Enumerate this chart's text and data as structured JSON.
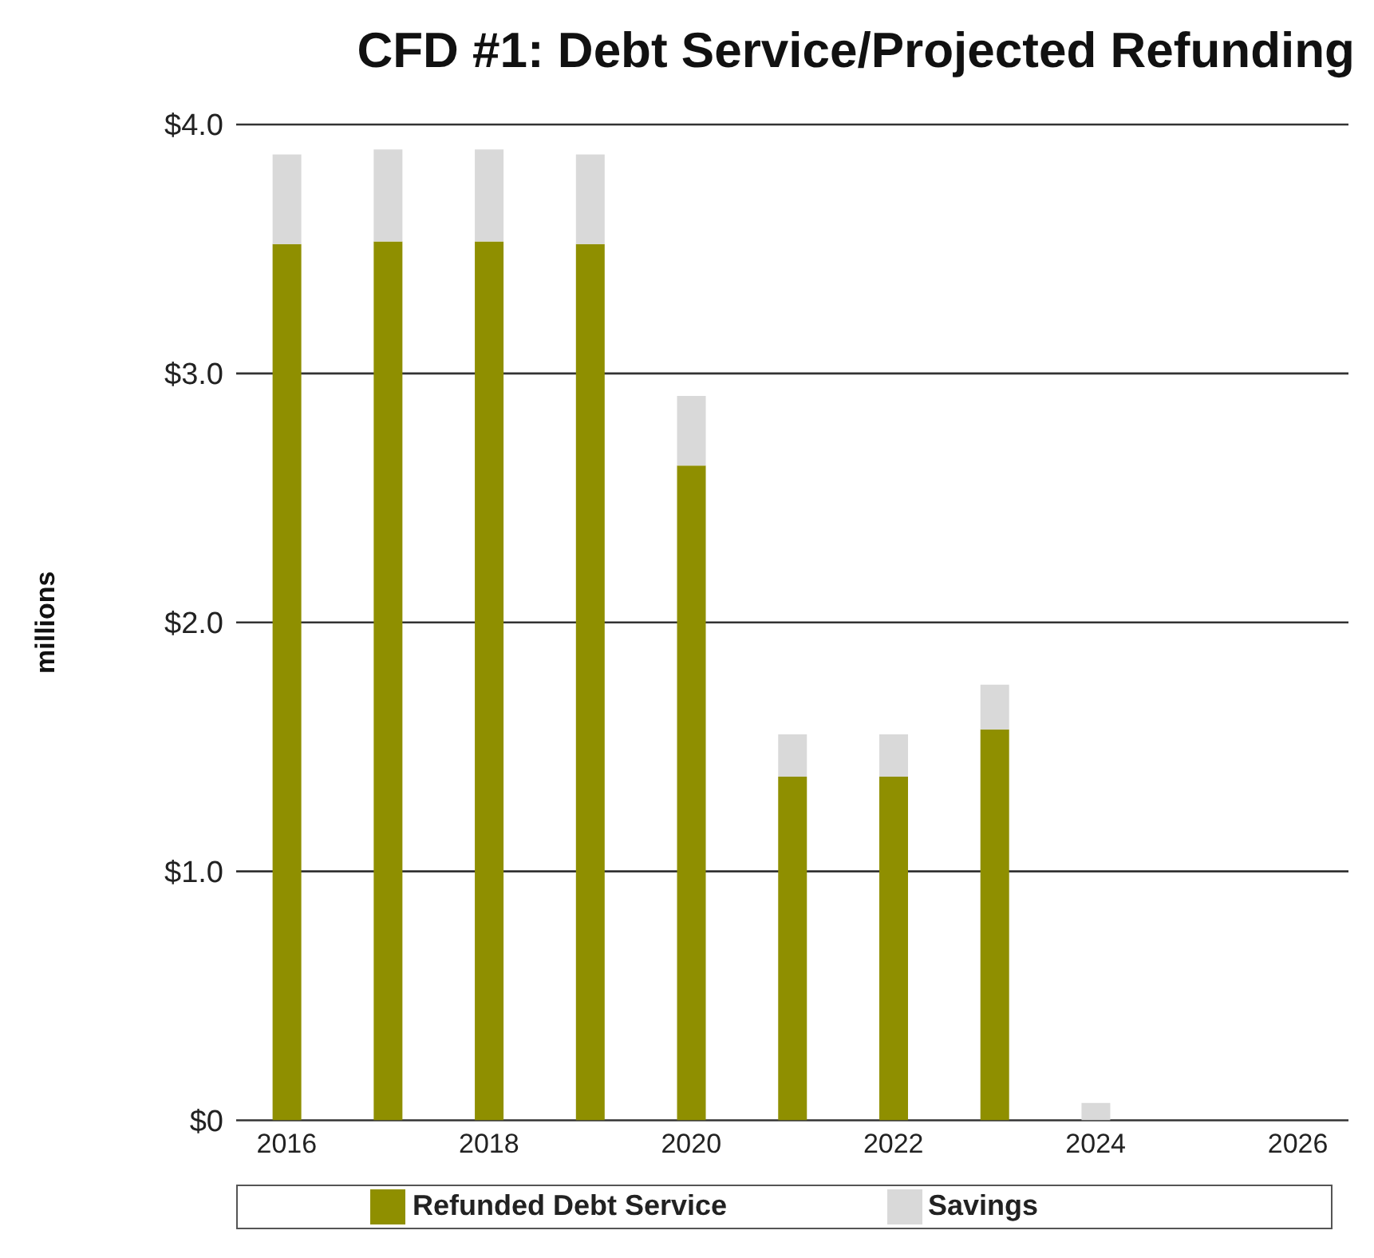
{
  "chart_data": {
    "type": "bar",
    "title": "CFD #1: Debt Service/Projected Refunding",
    "ylabel": "millions",
    "categories": [
      "2016",
      null,
      "2018",
      null,
      "2020",
      null,
      "2022",
      null,
      "2024",
      null,
      "2026"
    ],
    "series": [
      {
        "name": "Refunded Debt Service",
        "color": "#8f8f00",
        "values": [
          3.52,
          3.53,
          3.53,
          3.52,
          2.63,
          1.38,
          1.38,
          1.57,
          0,
          null,
          null
        ]
      },
      {
        "name": "Savings",
        "color": "#d9d9d9",
        "values": [
          0.36,
          0.37,
          0.37,
          0.36,
          0.28,
          0.17,
          0.17,
          0.18,
          0.07,
          null,
          null
        ]
      }
    ],
    "stacked": true,
    "ylim": [
      0,
      4
    ],
    "yticks": [
      {
        "value": 0,
        "label": "$0"
      },
      {
        "value": 1,
        "label": "$1.0"
      },
      {
        "value": 2,
        "label": "$2.0"
      },
      {
        "value": 3,
        "label": "$3.0"
      },
      {
        "value": 4,
        "label": "$4.0"
      }
    ],
    "grid": "y",
    "legend": "bottom"
  }
}
